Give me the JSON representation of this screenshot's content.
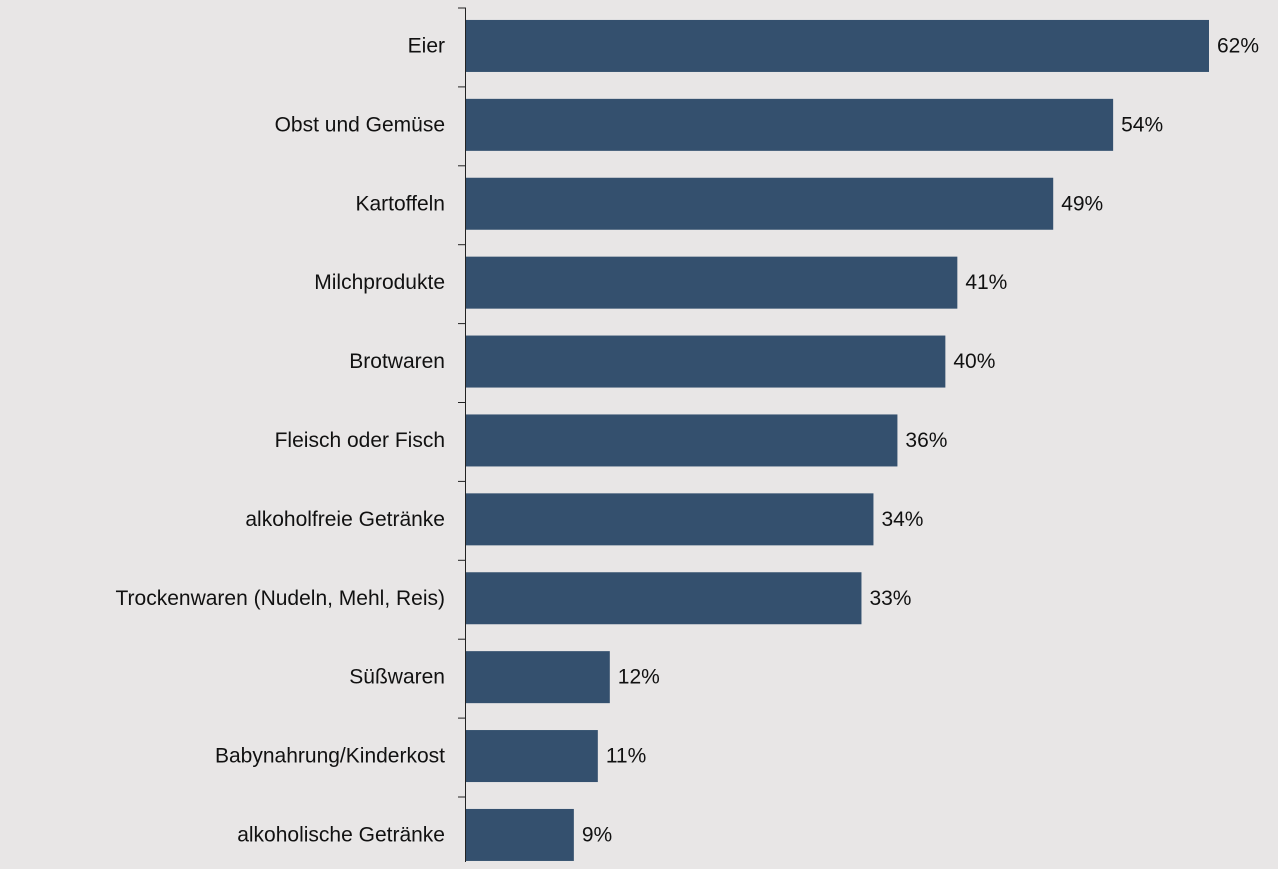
{
  "chart_data": {
    "type": "bar",
    "orientation": "horizontal",
    "categories": [
      "Eier",
      "Obst und Gemüse",
      "Kartoffeln",
      "Milchprodukte",
      "Brotwaren",
      "Fleisch oder Fisch",
      "alkoholfreie Getränke",
      "Trockenwaren (Nudeln, Mehl, Reis)",
      "Süßwaren",
      "Babynahrung/Kinderkost",
      "alkoholische Getränke"
    ],
    "values": [
      62,
      54,
      49,
      41,
      40,
      36,
      34,
      33,
      12,
      11,
      9
    ],
    "value_labels": [
      "62%",
      "54%",
      "49%",
      "41%",
      "40%",
      "36%",
      "34%",
      "33%",
      "12%",
      "11%",
      "9%"
    ],
    "color": "#34506e"
  }
}
